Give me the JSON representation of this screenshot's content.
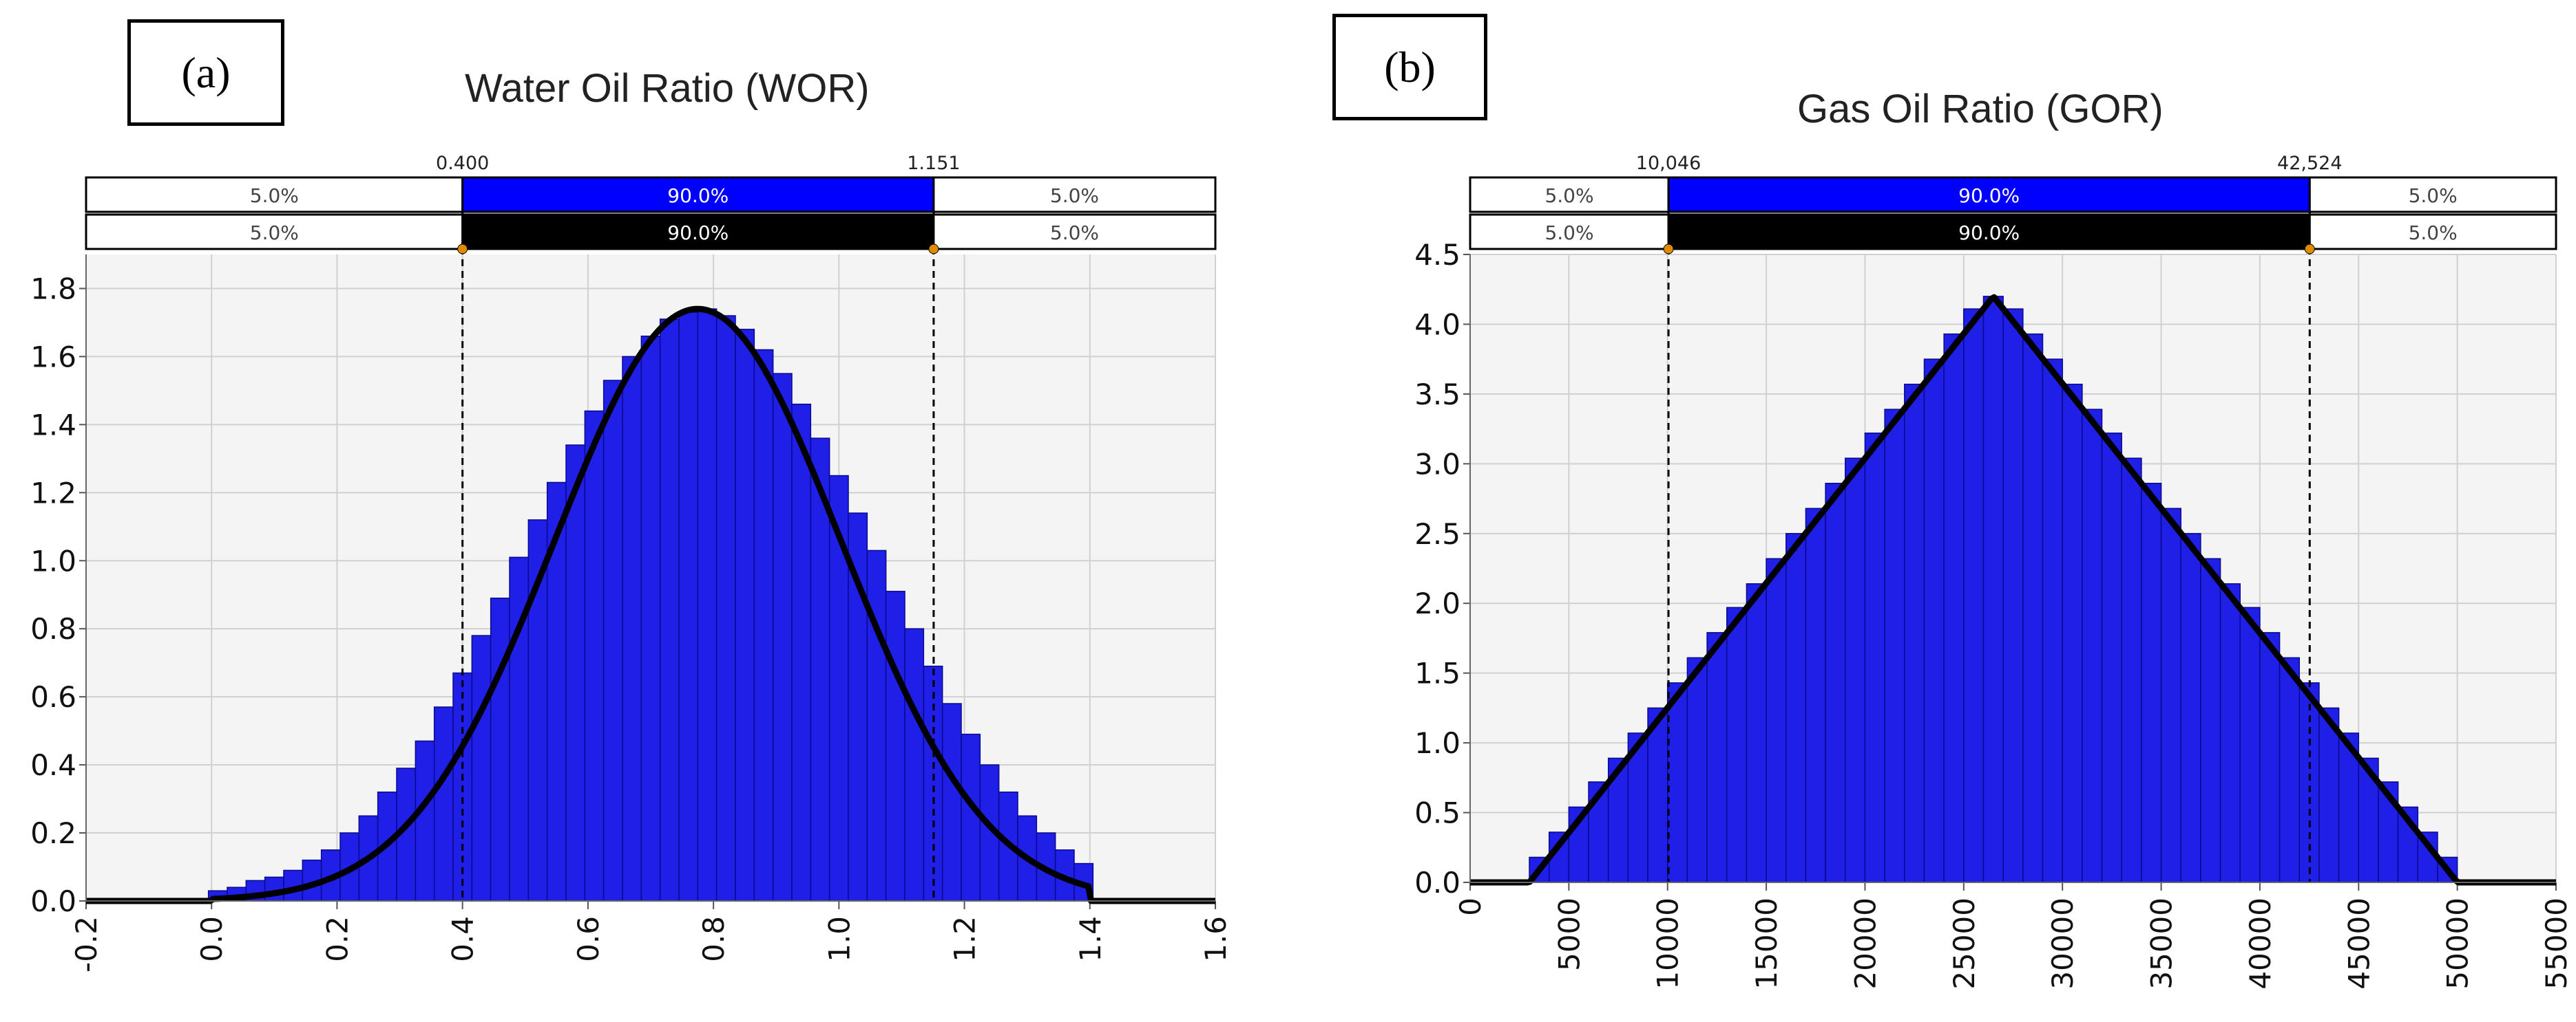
{
  "figure": {
    "panel_a": {
      "label": "(a)",
      "title": "Water Oil Ratio (WOR)",
      "bands": {
        "top": {
          "left": "5.0%",
          "middle": "90.0%",
          "right": "5.0%"
        },
        "bottom": {
          "left": "5.0%",
          "middle": "90.0%",
          "right": "5.0%"
        },
        "low_marker": "0.400",
        "high_marker": "1.151"
      }
    },
    "panel_b": {
      "label": "(b)",
      "title": "Gas Oil Ratio (GOR)",
      "bands": {
        "top": {
          "left": "5.0%",
          "middle": "90.0%",
          "right": "5.0%"
        },
        "bottom": {
          "left": "5.0%",
          "middle": "90.0%",
          "right": "5.0%"
        },
        "low_marker": "10,046",
        "high_marker": "42,524"
      }
    }
  },
  "colors": {
    "bar_fill": "#1f1fe8",
    "bar_edge": "#0a0a8c",
    "curve": "#000000",
    "band_blue": "#0000ff",
    "band_black": "#000000",
    "plot_bg": "#f4f4f4",
    "grid": "#d0d0d0"
  },
  "chart_data": [
    {
      "type": "bar",
      "title": "Water Oil Ratio (WOR)",
      "distribution": "normal",
      "fit": {
        "mean": 0.775,
        "sd": 0.229,
        "peak_density": 1.74,
        "min": -0.2,
        "max": 1.4
      },
      "x": [
        0.01,
        0.04,
        0.07,
        0.1,
        0.13,
        0.16,
        0.19,
        0.22,
        0.25,
        0.28,
        0.31,
        0.34,
        0.37,
        0.4,
        0.43,
        0.46,
        0.49,
        0.52,
        0.55,
        0.58,
        0.61,
        0.64,
        0.67,
        0.7,
        0.73,
        0.76,
        0.79,
        0.82,
        0.85,
        0.88,
        0.91,
        0.94,
        0.97,
        1.0,
        1.03,
        1.06,
        1.09,
        1.12,
        1.15,
        1.18,
        1.21,
        1.24,
        1.27,
        1.3,
        1.33,
        1.36,
        1.39
      ],
      "values": [
        0.03,
        0.04,
        0.06,
        0.07,
        0.09,
        0.12,
        0.15,
        0.2,
        0.25,
        0.32,
        0.39,
        0.47,
        0.57,
        0.67,
        0.78,
        0.89,
        1.01,
        1.12,
        1.23,
        1.34,
        1.44,
        1.53,
        1.6,
        1.66,
        1.71,
        1.73,
        1.74,
        1.72,
        1.68,
        1.62,
        1.55,
        1.46,
        1.36,
        1.25,
        1.14,
        1.03,
        0.91,
        0.8,
        0.69,
        0.58,
        0.49,
        0.4,
        0.32,
        0.25,
        0.2,
        0.15,
        0.11
      ],
      "x_ticks": [
        "-0.2",
        "0.0",
        "0.2",
        "0.4",
        "0.6",
        "0.8",
        "1.0",
        "1.2",
        "1.4",
        "1.6"
      ],
      "y_ticks": [
        "0.0",
        "0.2",
        "0.4",
        "0.6",
        "0.8",
        "1.0",
        "1.2",
        "1.4",
        "1.6",
        "1.8"
      ],
      "xlim": [
        -0.2,
        1.6
      ],
      "ylim": [
        0,
        1.9
      ],
      "percentiles": {
        "p5": 0.4,
        "p95": 1.151
      },
      "grid": true,
      "xlabel": "",
      "ylabel": ""
    },
    {
      "type": "bar",
      "title": "Gas Oil Ratio (GOR)",
      "distribution": "triangular",
      "fit": {
        "min": 3000,
        "mode": 26500,
        "max": 50000,
        "peak_density": 4.2
      },
      "x": [
        3500,
        4500,
        5500,
        6500,
        7500,
        8500,
        9500,
        10500,
        11500,
        12500,
        13500,
        14500,
        15500,
        16500,
        17500,
        18500,
        19500,
        20500,
        21500,
        22500,
        23500,
        24500,
        25500,
        26500,
        27500,
        28500,
        29500,
        30500,
        31500,
        32500,
        33500,
        34500,
        35500,
        36500,
        37500,
        38500,
        39500,
        40500,
        41500,
        42500,
        43500,
        44500,
        45500,
        46500,
        47500,
        48500,
        49500
      ],
      "values": [
        0.18,
        0.36,
        0.54,
        0.72,
        0.89,
        1.07,
        1.25,
        1.43,
        1.61,
        1.79,
        1.97,
        2.14,
        2.32,
        2.5,
        2.68,
        2.86,
        3.04,
        3.22,
        3.39,
        3.57,
        3.75,
        3.93,
        4.11,
        4.2,
        4.11,
        3.93,
        3.75,
        3.57,
        3.39,
        3.22,
        3.04,
        2.86,
        2.68,
        2.5,
        2.32,
        2.14,
        1.97,
        1.79,
        1.61,
        1.43,
        1.25,
        1.07,
        0.89,
        0.72,
        0.54,
        0.36,
        0.18
      ],
      "x_ticks": [
        "0",
        "5000",
        "10000",
        "15000",
        "20000",
        "25000",
        "30000",
        "35000",
        "40000",
        "45000",
        "50000",
        "55000"
      ],
      "y_ticks": [
        "0.0",
        "0.5",
        "1.0",
        "1.5",
        "2.0",
        "2.5",
        "3.0",
        "3.5",
        "4.0",
        "4.5"
      ],
      "xlim": [
        0,
        55000
      ],
      "ylim": [
        0,
        4.5
      ],
      "percentiles": {
        "p5": 10046,
        "p95": 42524
      },
      "grid": true,
      "xlabel": "",
      "ylabel": ""
    }
  ]
}
